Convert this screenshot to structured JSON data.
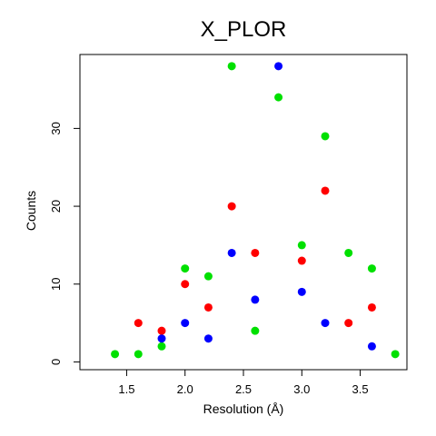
{
  "chart_data": {
    "type": "scatter",
    "title": "X_PLOR",
    "xlabel": "Resolution (Å)",
    "ylabel": "Counts",
    "xlim": [
      1.1,
      3.9
    ],
    "ylim": [
      -1,
      39.5
    ],
    "x_ticks": [
      1.5,
      2.0,
      2.5,
      3.0,
      3.5
    ],
    "x_tick_labels": [
      "1.5",
      "2.0",
      "2.5",
      "3.0",
      "3.5"
    ],
    "y_ticks": [
      0,
      10,
      20,
      30
    ],
    "y_tick_labels": [
      "0",
      "10",
      "20",
      "30"
    ],
    "grid": false,
    "legend": "none",
    "series": [
      {
        "color": "#00e000",
        "points": [
          {
            "x": 1.4,
            "y": 1
          },
          {
            "x": 1.6,
            "y": 1
          },
          {
            "x": 1.8,
            "y": 2
          },
          {
            "x": 2.0,
            "y": 12
          },
          {
            "x": 2.2,
            "y": 11
          },
          {
            "x": 2.4,
            "y": 38
          },
          {
            "x": 2.6,
            "y": 4
          },
          {
            "x": 2.8,
            "y": 34
          },
          {
            "x": 3.0,
            "y": 15
          },
          {
            "x": 3.2,
            "y": 29
          },
          {
            "x": 3.4,
            "y": 14
          },
          {
            "x": 3.6,
            "y": 12
          },
          {
            "x": 3.8,
            "y": 1
          }
        ]
      },
      {
        "color": "#ff0000",
        "points": [
          {
            "x": 1.6,
            "y": 5
          },
          {
            "x": 1.8,
            "y": 4
          },
          {
            "x": 2.0,
            "y": 10
          },
          {
            "x": 2.2,
            "y": 7
          },
          {
            "x": 2.4,
            "y": 20
          },
          {
            "x": 2.6,
            "y": 14
          },
          {
            "x": 3.0,
            "y": 13
          },
          {
            "x": 3.2,
            "y": 22
          },
          {
            "x": 3.4,
            "y": 5
          },
          {
            "x": 3.6,
            "y": 7
          }
        ]
      },
      {
        "color": "#0000ff",
        "points": [
          {
            "x": 1.8,
            "y": 3
          },
          {
            "x": 2.0,
            "y": 5
          },
          {
            "x": 2.2,
            "y": 3
          },
          {
            "x": 2.4,
            "y": 14
          },
          {
            "x": 2.6,
            "y": 8
          },
          {
            "x": 2.8,
            "y": 38
          },
          {
            "x": 3.0,
            "y": 9
          },
          {
            "x": 3.2,
            "y": 5
          },
          {
            "x": 3.6,
            "y": 2
          }
        ]
      }
    ]
  }
}
